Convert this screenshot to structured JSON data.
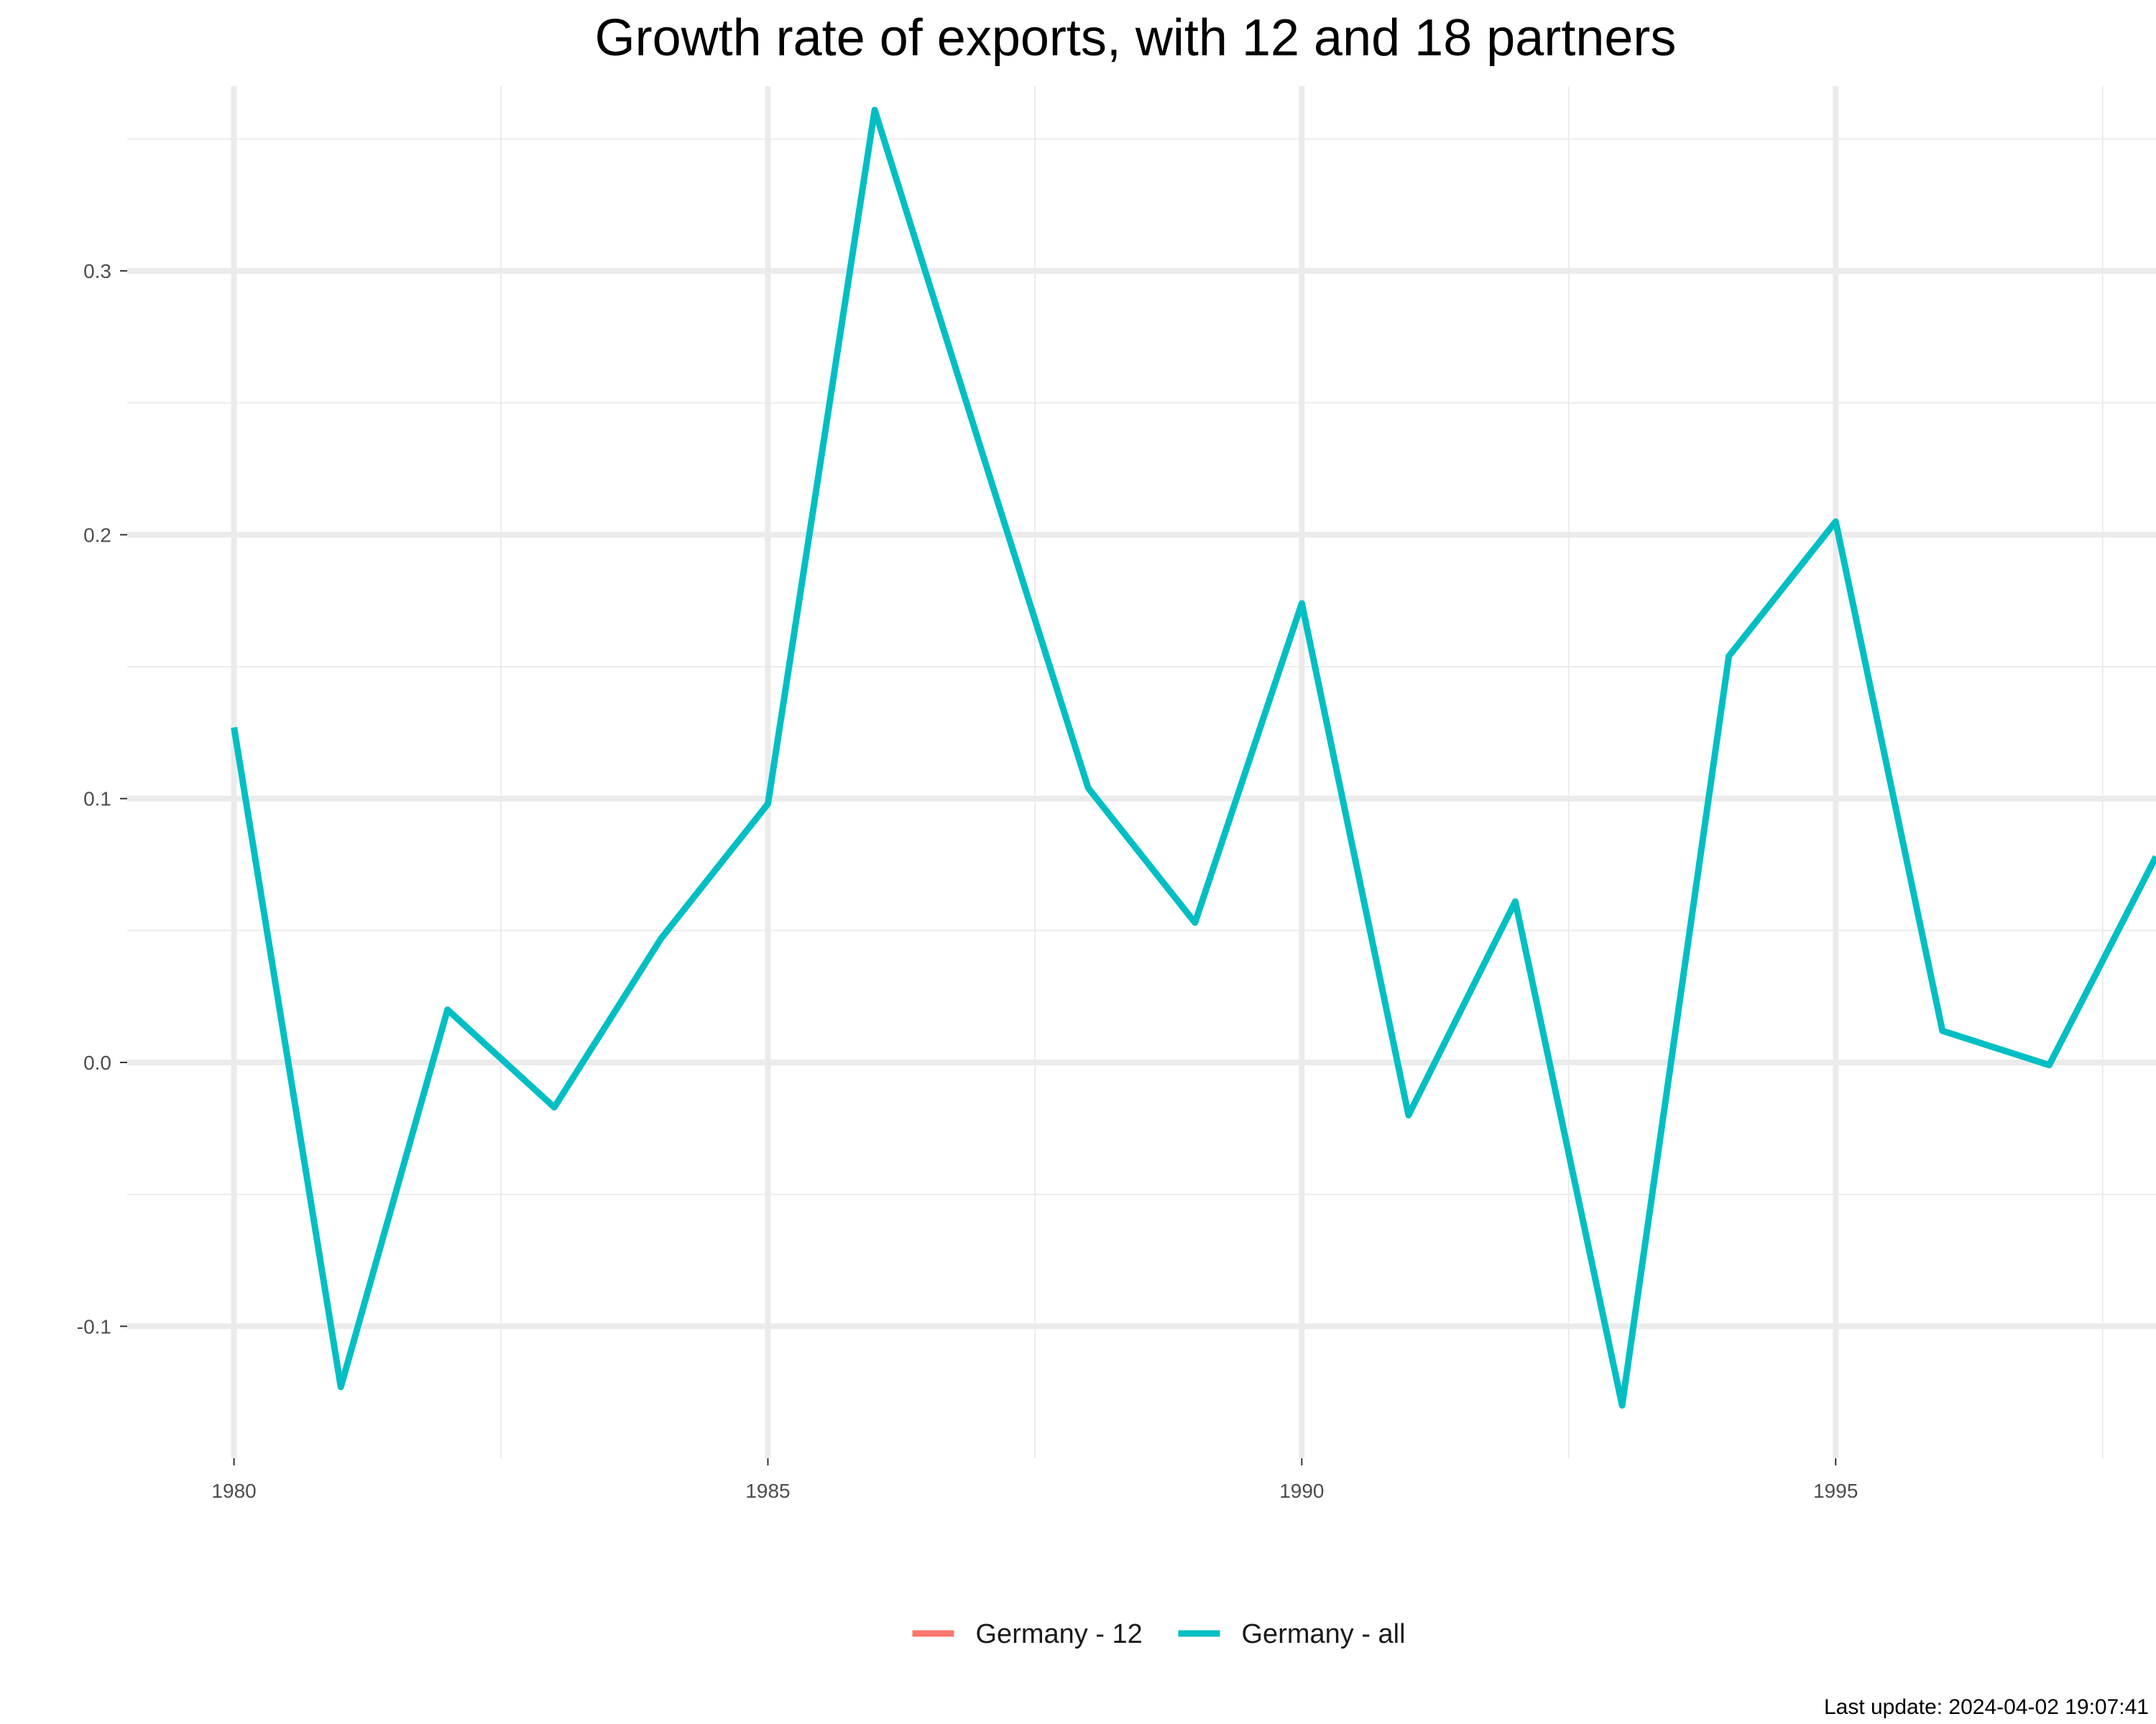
{
  "chart_data": {
    "type": "line",
    "title": "Growth rate of exports, with 12 and 18 partners",
    "xlabel": "",
    "ylabel": "",
    "xlim": [
      1979.0,
      1998.0
    ],
    "ylim": [
      -0.15,
      0.37
    ],
    "x_ticks": [
      1980,
      1985,
      1990,
      1995
    ],
    "x_tick_labels": [
      "1980",
      "1985",
      "1990",
      "1995"
    ],
    "y_ticks": [
      -0.1,
      0.0,
      0.1,
      0.2,
      0.3
    ],
    "y_tick_labels": [
      "-0.1",
      "0.0",
      "0.1",
      "0.2",
      "0.3"
    ],
    "grid": true,
    "legend_position": "bottom",
    "series": [
      {
        "name": "Germany - 12",
        "color": "#F8766D",
        "x": [],
        "values": []
      },
      {
        "name": "Germany - all",
        "color": "#00BFC4",
        "x": [
          1980,
          1981,
          1982,
          1983,
          1984,
          1985,
          1986,
          1987,
          1988,
          1989,
          1990,
          1991,
          1992,
          1993,
          1994,
          1995,
          1996,
          1997,
          1998
        ],
        "values": [
          0.127,
          -0.123,
          0.02,
          -0.017,
          0.047,
          0.098,
          0.361,
          0.232,
          0.104,
          0.053,
          0.174,
          -0.02,
          0.061,
          -0.13,
          0.154,
          0.205,
          0.012,
          -0.001,
          0.078
        ]
      }
    ]
  },
  "caption": "Last update: 2024-04-02 19:07:41"
}
